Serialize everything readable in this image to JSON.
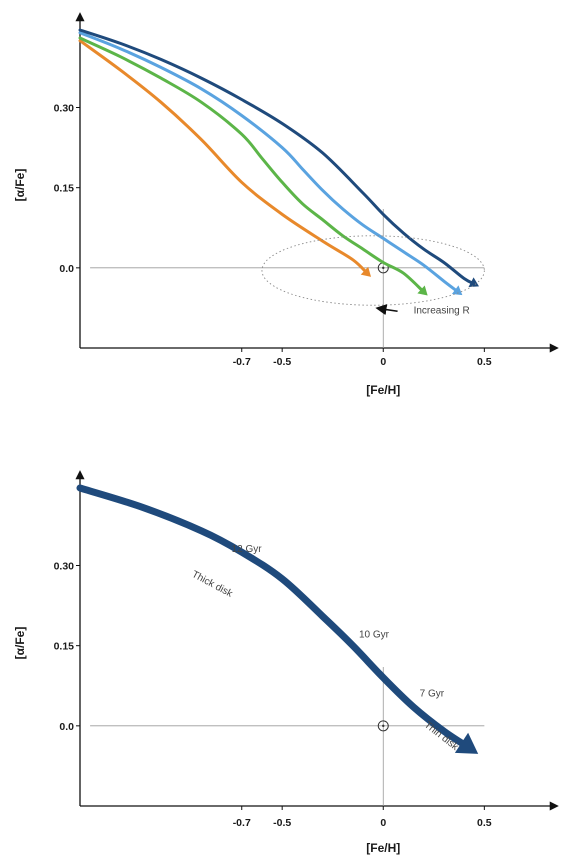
{
  "chart_data": [
    {
      "type": "line",
      "title": "",
      "xlabel": "[Fe/H]",
      "ylabel": "[α/Fe]",
      "xlim": [
        -1.5,
        0.8
      ],
      "ylim": [
        -0.15,
        0.46
      ],
      "x_ticks": [
        {
          "value": -0.7,
          "label": "-0.7"
        },
        {
          "value": -0.5,
          "label": "-0.5"
        },
        {
          "value": 0,
          "label": "0"
        },
        {
          "value": 0.5,
          "label": "0.5"
        }
      ],
      "y_ticks": [
        {
          "value": 0.3,
          "label": "0.30"
        },
        {
          "value": 0.15,
          "label": "0.15"
        },
        {
          "value": 0.0,
          "label": "0.0"
        }
      ],
      "reference_lines": {
        "x": 0,
        "y": 0
      },
      "solar_marker": {
        "x": 0,
        "y": 0
      },
      "series": [
        {
          "color": "#e8892b",
          "x": [
            -1.5,
            -1.3,
            -1.1,
            -0.9,
            -0.7,
            -0.5,
            -0.3,
            -0.15,
            -0.08
          ],
          "y": [
            0.425,
            0.37,
            0.31,
            0.24,
            0.16,
            0.1,
            0.05,
            0.015,
            -0.01
          ]
        },
        {
          "color": "#5cb548",
          "x": [
            -1.5,
            -1.3,
            -1.1,
            -0.9,
            -0.7,
            -0.6,
            -0.5,
            -0.4,
            -0.3,
            -0.2,
            -0.1,
            0.0,
            0.1,
            0.2
          ],
          "y": [
            0.43,
            0.395,
            0.355,
            0.31,
            0.25,
            0.205,
            0.16,
            0.12,
            0.09,
            0.06,
            0.035,
            0.01,
            -0.01,
            -0.045
          ]
        },
        {
          "color": "#5aa3e0",
          "x": [
            -1.5,
            -1.3,
            -1.1,
            -0.9,
            -0.7,
            -0.5,
            -0.4,
            -0.3,
            -0.2,
            -0.1,
            0.0,
            0.1,
            0.2,
            0.3,
            0.37
          ],
          "y": [
            0.44,
            0.41,
            0.375,
            0.335,
            0.285,
            0.225,
            0.185,
            0.145,
            0.11,
            0.08,
            0.055,
            0.03,
            0.005,
            -0.025,
            -0.045
          ]
        },
        {
          "color": "#1f4a7c",
          "x": [
            -1.5,
            -1.3,
            -1.1,
            -0.9,
            -0.7,
            -0.5,
            -0.3,
            -0.1,
            0.0,
            0.1,
            0.2,
            0.3,
            0.4,
            0.45
          ],
          "y": [
            0.445,
            0.42,
            0.39,
            0.355,
            0.315,
            0.27,
            0.215,
            0.14,
            0.1,
            0.065,
            0.035,
            0.01,
            -0.02,
            -0.03
          ]
        }
      ],
      "annotations": [
        {
          "text": "Increasing R",
          "x": 0.15,
          "y": -0.085
        }
      ]
    },
    {
      "type": "line",
      "title": "",
      "xlabel": "[Fe/H]",
      "ylabel": "[α/Fe]",
      "xlim": [
        -1.5,
        0.8
      ],
      "ylim": [
        -0.15,
        0.46
      ],
      "x_ticks": [
        {
          "value": -0.7,
          "label": "-0.7"
        },
        {
          "value": -0.5,
          "label": "-0.5"
        },
        {
          "value": 0,
          "label": "0"
        },
        {
          "value": 0.5,
          "label": "0.5"
        }
      ],
      "y_ticks": [
        {
          "value": 0.3,
          "label": "0.30"
        },
        {
          "value": 0.15,
          "label": "0.15"
        },
        {
          "value": 0.0,
          "label": "0.0"
        }
      ],
      "reference_lines": {
        "x": 0,
        "y": 0
      },
      "solar_marker": {
        "x": 0,
        "y": 0
      },
      "series": [
        {
          "color": "#1f4a7c",
          "x": [
            -1.5,
            -1.2,
            -0.9,
            -0.7,
            -0.5,
            -0.3,
            -0.15,
            0.0,
            0.15,
            0.3,
            0.42
          ],
          "y": [
            0.445,
            0.41,
            0.365,
            0.325,
            0.275,
            0.205,
            0.15,
            0.09,
            0.035,
            -0.01,
            -0.04
          ]
        }
      ],
      "annotations": [
        {
          "text": "12 Gyr",
          "x": -0.75,
          "y": 0.325
        },
        {
          "text": "Thick disk",
          "x": -0.95,
          "y": 0.28
        },
        {
          "text": "10 Gyr",
          "x": -0.12,
          "y": 0.165
        },
        {
          "text": "7 Gyr",
          "x": 0.18,
          "y": 0.055
        },
        {
          "text": "Thin disk",
          "x": 0.2,
          "y": 0.0
        }
      ]
    }
  ]
}
